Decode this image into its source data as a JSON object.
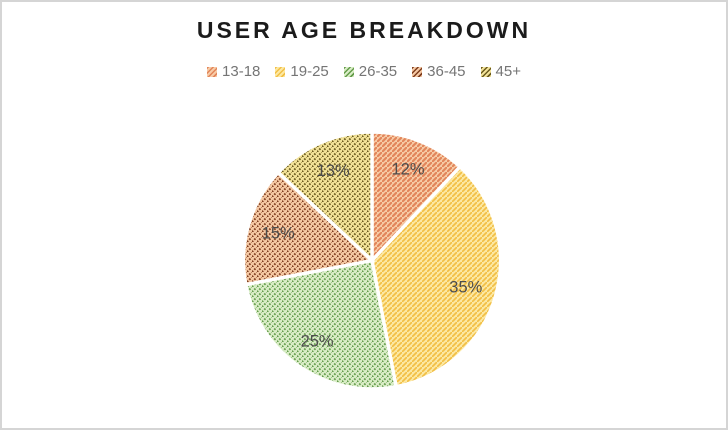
{
  "page": {
    "background": "#ffffff",
    "border_color": "#d5d5d5"
  },
  "chart_data": {
    "type": "pie",
    "title": "USER AGE BREAKDOWN",
    "categories": [
      "13-18",
      "19-25",
      "26-35",
      "36-45",
      "45+"
    ],
    "values": [
      12,
      35,
      25,
      15,
      13
    ],
    "data_labels": [
      "12%",
      "35%",
      "25%",
      "15%",
      "13%"
    ],
    "start_angle_deg": 0,
    "direction": "clockwise",
    "legend_position": "top",
    "title_color": "#1b1b1b",
    "legend_text_color": "#757575",
    "data_label_color": "#4d4d4d",
    "slice_gap_color": "#ffffff",
    "slice_styles": [
      {
        "base": "#f7cba6",
        "stripe": "#e2855a",
        "hatch": "line"
      },
      {
        "base": "#fce8a2",
        "stripe": "#f2bf45",
        "hatch": "line"
      },
      {
        "base": "#d9edc6",
        "stripe": "#649c4b",
        "hatch": "dot"
      },
      {
        "base": "#f5c8a3",
        "stripe": "#7e3d1e",
        "hatch": "dot"
      },
      {
        "base": "#f2e298",
        "stripe": "#6a5a1d",
        "hatch": "dot"
      }
    ]
  }
}
